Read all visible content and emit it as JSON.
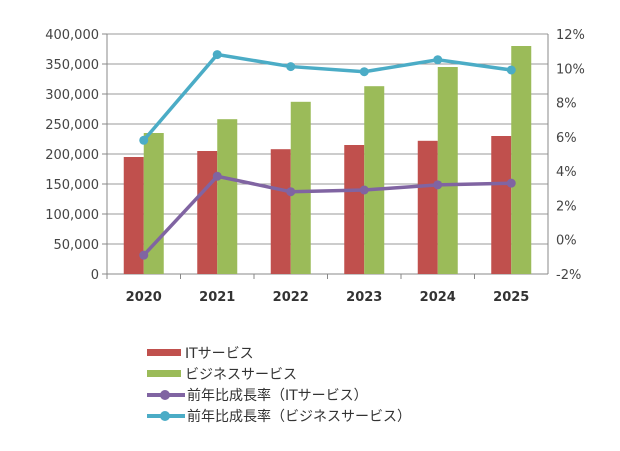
{
  "chart_data": {
    "type": "bar+line",
    "categories": [
      "2020",
      "2021",
      "2022",
      "2023",
      "2024",
      "2025"
    ],
    "left_axis": {
      "ylim": [
        0,
        400000
      ],
      "ticks": [
        "0",
        "50,000",
        "100,000",
        "150,000",
        "200,000",
        "250,000",
        "300,000",
        "350,000",
        "400,000"
      ]
    },
    "right_axis": {
      "ylim": [
        -2,
        12
      ],
      "ticks": [
        "-2%",
        "0%",
        "2%",
        "4%",
        "6%",
        "8%",
        "10%",
        "12%"
      ]
    },
    "grid": true,
    "legend_position": "bottom",
    "series": [
      {
        "name": "ITサービス",
        "type": "bar",
        "axis": "left",
        "color": "#c0504d",
        "values": [
          195000,
          205000,
          208000,
          215000,
          222000,
          230000
        ]
      },
      {
        "name": "ビジネスサービス",
        "type": "bar",
        "axis": "left",
        "color": "#9bbb59",
        "values": [
          235000,
          258000,
          287000,
          313000,
          345000,
          380000
        ]
      },
      {
        "name": "前年比成長率（ITサービス）",
        "type": "line",
        "axis": "right",
        "color": "#8064a2",
        "values": [
          -0.9,
          3.7,
          2.8,
          2.9,
          3.2,
          3.3
        ]
      },
      {
        "name": "前年比成長率（ビジネスサービス）",
        "type": "line",
        "axis": "right",
        "color": "#4bacc6",
        "values": [
          5.8,
          10.8,
          10.1,
          9.8,
          10.5,
          9.9
        ]
      }
    ]
  }
}
